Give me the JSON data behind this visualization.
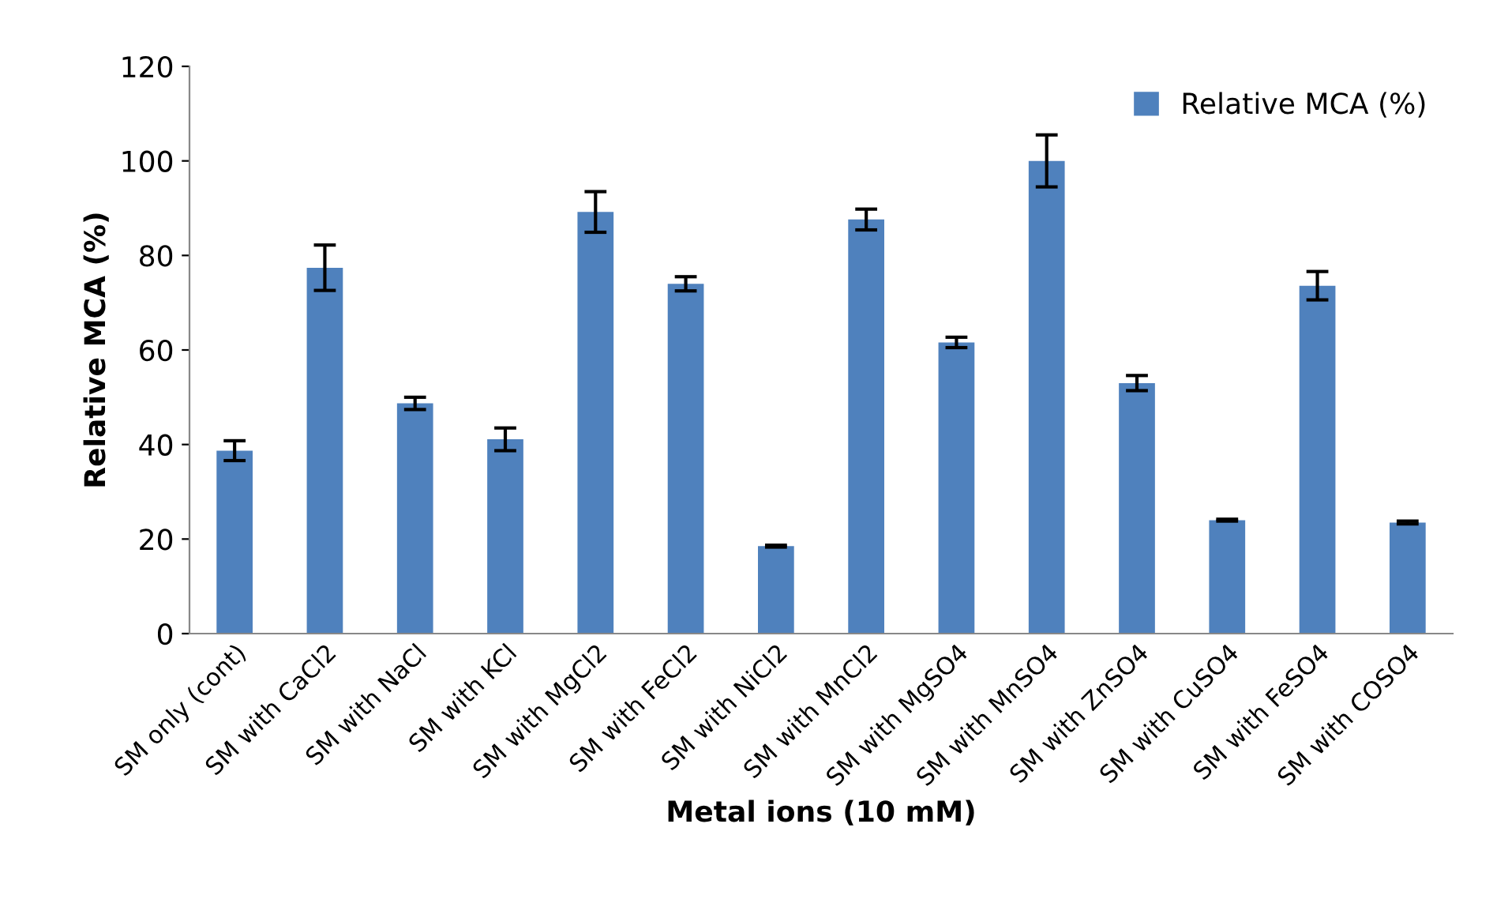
{
  "chart_data": {
    "type": "bar",
    "xlabel": "Metal ions (10 mM)",
    "ylabel": "Relative MCA (%)",
    "categories": [
      "SM only (cont)",
      "SM with CaCl2",
      "SM with NaCl",
      "SM with KCl",
      "SM with MgCl2",
      "SM with FeCl2",
      "SM with NiCl2",
      "SM with MnCl2",
      "SM with MgSO4",
      "SM with MnSO4",
      "SM with ZnSO4",
      "SM with CuSO4",
      "SM with FeSO4",
      "SM with COSO4"
    ],
    "series": [
      {
        "name": "Relative MCA (%)",
        "color": "#4f81bd",
        "values": [
          38.7,
          77.4,
          48.7,
          41.1,
          89.2,
          74.0,
          18.5,
          87.6,
          61.6,
          100,
          53.0,
          24.0,
          73.6,
          23.5
        ],
        "errors": [
          2.1,
          4.8,
          1.3,
          2.4,
          4.3,
          1.5,
          0.2,
          2.2,
          1.1,
          5.5,
          1.6,
          0.2,
          3.0,
          0.3
        ]
      }
    ],
    "ylim": [
      0,
      120
    ],
    "yticks": [
      0,
      20,
      40,
      60,
      80,
      100,
      120
    ],
    "grid": false,
    "legend": "top right"
  }
}
